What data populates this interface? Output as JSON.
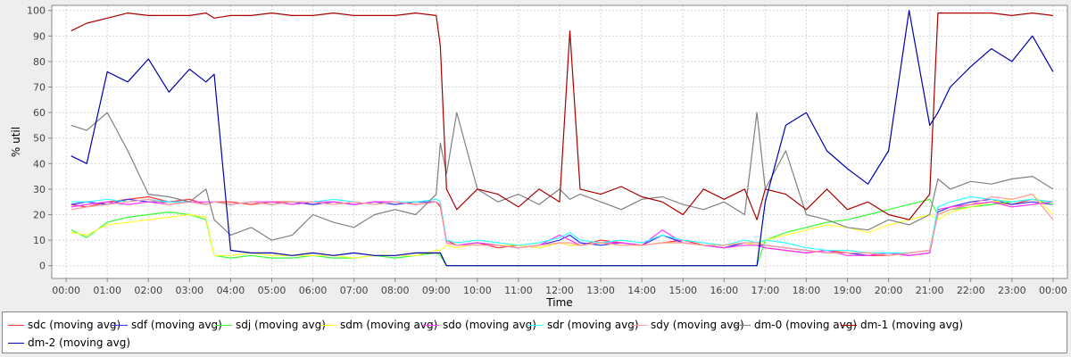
{
  "chart_data": {
    "type": "line",
    "title": "",
    "xlabel": "Time",
    "ylabel": "% util",
    "ylim": [
      -5,
      102
    ],
    "xlim": [
      -0.35,
      24.35
    ],
    "grid": true,
    "legend_position": "bottom",
    "x_ticks": [
      "00:00",
      "01:00",
      "02:00",
      "03:00",
      "04:00",
      "05:00",
      "06:00",
      "07:00",
      "08:00",
      "09:00",
      "10:00",
      "11:00",
      "12:00",
      "13:00",
      "14:00",
      "15:00",
      "16:00",
      "17:00",
      "18:00",
      "19:00",
      "20:00",
      "21:00",
      "22:00",
      "23:00",
      "00:00"
    ],
    "y_ticks": [
      "0",
      "10",
      "20",
      "30",
      "40",
      "50",
      "60",
      "70",
      "80",
      "90",
      "100"
    ],
    "x_hours": [
      0.12,
      0.5,
      1,
      1.5,
      2,
      2.5,
      3,
      3.4,
      3.6,
      4,
      4.5,
      5,
      5.5,
      6,
      6.5,
      7,
      7.5,
      8,
      8.5,
      9,
      9.1,
      9.25,
      9.5,
      10,
      10.5,
      11,
      11.5,
      12,
      12.25,
      12.5,
      13,
      13.5,
      14,
      14.5,
      15,
      15.5,
      16,
      16.5,
      16.8,
      17,
      17.5,
      18,
      18.5,
      19,
      19.5,
      20,
      20.5,
      21,
      21.2,
      21.5,
      22,
      22.5,
      23,
      23.5,
      24
    ],
    "series": [
      {
        "name": "sdc (moving avg)",
        "color": "#ff3333",
        "values": [
          24,
          23,
          25,
          26,
          27,
          25,
          26,
          24,
          25,
          25,
          24,
          25,
          25,
          24,
          25,
          24,
          25,
          25,
          24,
          25,
          23,
          10,
          8,
          9,
          7,
          8,
          7,
          9,
          8,
          8,
          10,
          9,
          8,
          9,
          10,
          8,
          7,
          9,
          8,
          7,
          6,
          5,
          6,
          5,
          4,
          4,
          5,
          6,
          20,
          22,
          24,
          25,
          24,
          26,
          25
        ]
      },
      {
        "name": "sdf (moving avg)",
        "color": "#3333ff",
        "values": [
          24,
          25,
          24,
          26,
          25,
          25,
          25,
          24,
          25,
          24,
          25,
          24,
          25,
          24,
          25,
          24,
          25,
          24,
          25,
          25,
          24,
          9,
          8,
          9,
          8,
          7,
          8,
          10,
          12,
          9,
          8,
          9,
          8,
          12,
          9,
          8,
          7,
          9,
          8,
          8,
          7,
          6,
          5,
          5,
          4,
          5,
          4,
          5,
          21,
          23,
          25,
          26,
          24,
          25,
          24
        ]
      },
      {
        "name": "sdj (moving avg)",
        "color": "#33ff33",
        "values": [
          14,
          11,
          17,
          19,
          20,
          21,
          20,
          18,
          4,
          3,
          4,
          3,
          3,
          4,
          3,
          3,
          4,
          3,
          4,
          5,
          4,
          0,
          0,
          0,
          0,
          0,
          0,
          0,
          0,
          0,
          0,
          0,
          0,
          0,
          0,
          0,
          0,
          0,
          0,
          10,
          13,
          15,
          17,
          18,
          20,
          22,
          24,
          26,
          20,
          22,
          23,
          24,
          25,
          26,
          24
        ]
      },
      {
        "name": "sdm (moving avg)",
        "color": "#ffff33",
        "values": [
          13,
          12,
          16,
          17,
          18,
          19,
          20,
          19,
          4,
          4,
          5,
          4,
          4,
          4,
          4,
          3,
          4,
          4,
          4,
          6,
          6,
          8,
          7,
          9,
          8,
          8,
          7,
          9,
          8,
          8,
          9,
          8,
          8,
          9,
          9,
          8,
          8,
          9,
          8,
          10,
          12,
          14,
          16,
          15,
          13,
          16,
          18,
          20,
          18,
          21,
          23,
          25,
          26,
          28,
          20
        ]
      },
      {
        "name": "sdo (moving avg)",
        "color": "#ff33ff",
        "values": [
          23,
          24,
          25,
          24,
          25,
          24,
          25,
          25,
          25,
          24,
          25,
          25,
          24,
          25,
          25,
          24,
          25,
          25,
          24,
          25,
          24,
          9,
          8,
          9,
          8,
          7,
          8,
          12,
          10,
          8,
          9,
          9,
          8,
          14,
          9,
          8,
          7,
          8,
          8,
          7,
          6,
          5,
          6,
          4,
          4,
          5,
          4,
          5,
          22,
          23,
          24,
          25,
          23,
          24,
          25
        ]
      },
      {
        "name": "sdr (moving avg)",
        "color": "#33ffff",
        "values": [
          25,
          25,
          26,
          25,
          26,
          25,
          25,
          24,
          25,
          24,
          25,
          24,
          25,
          25,
          26,
          25,
          24,
          25,
          25,
          26,
          25,
          10,
          9,
          10,
          9,
          8,
          9,
          11,
          13,
          10,
          9,
          10,
          9,
          12,
          10,
          9,
          8,
          10,
          9,
          10,
          9,
          7,
          6,
          6,
          5,
          5,
          5,
          6,
          23,
          25,
          27,
          26,
          25,
          26,
          25
        ]
      },
      {
        "name": "sdy (moving avg)",
        "color": "#ff9999",
        "values": [
          22,
          23,
          24,
          25,
          26,
          24,
          25,
          24,
          25,
          24,
          25,
          24,
          25,
          25,
          24,
          25,
          24,
          25,
          24,
          25,
          24,
          9,
          8,
          8,
          8,
          7,
          8,
          9,
          9,
          8,
          9,
          8,
          8,
          9,
          9,
          8,
          8,
          9,
          9,
          8,
          7,
          6,
          5,
          5,
          5,
          4,
          5,
          6,
          20,
          22,
          24,
          27,
          26,
          28,
          18
        ]
      },
      {
        "name": "dm-0 (moving avg)",
        "color": "#808080",
        "values": [
          55,
          53,
          60,
          45,
          28,
          27,
          25,
          30,
          18,
          12,
          15,
          10,
          12,
          20,
          17,
          15,
          20,
          22,
          20,
          28,
          48,
          36,
          60,
          30,
          25,
          28,
          24,
          30,
          26,
          28,
          25,
          22,
          26,
          27,
          24,
          22,
          25,
          20,
          60,
          30,
          45,
          20,
          18,
          15,
          14,
          18,
          16,
          20,
          34,
          30,
          33,
          32,
          34,
          35,
          30
        ]
      },
      {
        "name": "dm-1 (moving avg)",
        "color": "#aa0000",
        "values": [
          92,
          95,
          97,
          99,
          98,
          98,
          98,
          99,
          97,
          98,
          98,
          99,
          98,
          98,
          99,
          98,
          98,
          98,
          99,
          98,
          86,
          30,
          22,
          30,
          28,
          23,
          30,
          25,
          92,
          30,
          28,
          31,
          27,
          25,
          20,
          30,
          26,
          30,
          18,
          30,
          28,
          22,
          30,
          22,
          25,
          20,
          18,
          28,
          99,
          99,
          99,
          99,
          98,
          99,
          98
        ]
      },
      {
        "name": "dm-2 (moving avg)",
        "color": "#0000aa",
        "values": [
          43,
          40,
          76,
          72,
          81,
          68,
          77,
          72,
          75,
          6,
          5,
          5,
          4,
          5,
          4,
          5,
          4,
          4,
          5,
          5,
          5,
          0,
          0,
          0,
          0,
          0,
          0,
          0,
          0,
          0,
          0,
          0,
          0,
          0,
          0,
          0,
          0,
          0,
          0,
          25,
          55,
          60,
          45,
          38,
          32,
          45,
          100,
          55,
          60,
          70,
          78,
          85,
          80,
          90,
          76
        ]
      }
    ]
  }
}
